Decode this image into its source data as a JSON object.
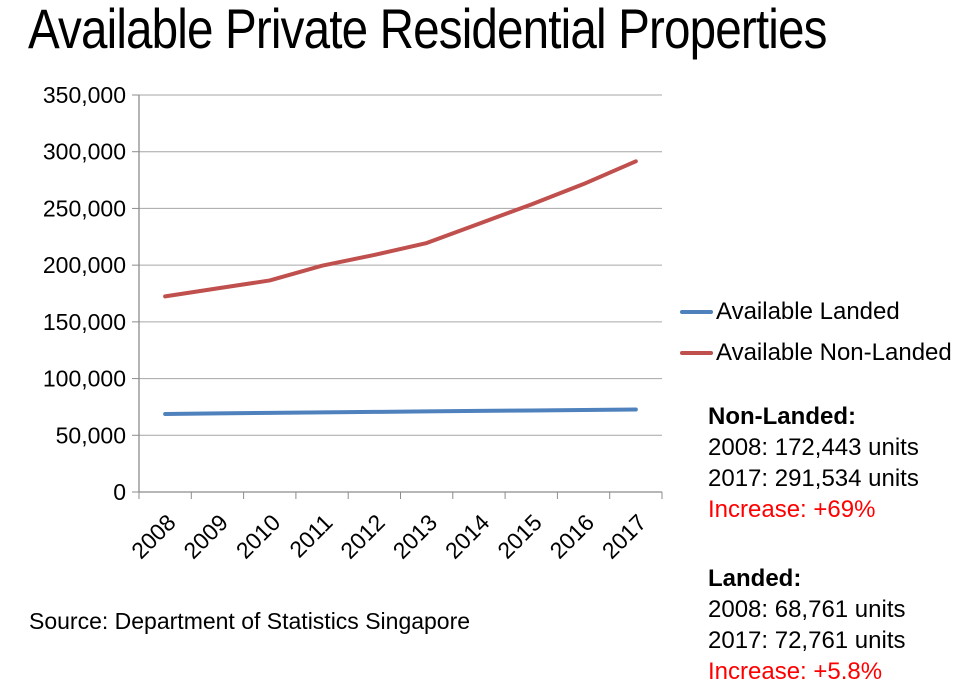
{
  "chart_data": {
    "type": "line",
    "title": "Available Private Residential Properties",
    "categories": [
      "2008",
      "2009",
      "2010",
      "2011",
      "2012",
      "2013",
      "2014",
      "2015",
      "2016",
      "2017"
    ],
    "series": [
      {
        "name": "Available Landed",
        "color": "#4F81BD",
        "values": [
          68761,
          69300,
          69800,
          70200,
          70600,
          71100,
          71500,
          71900,
          72300,
          72761
        ]
      },
      {
        "name": "Available Non-Landed",
        "color": "#C0504D",
        "values": [
          172443,
          179500,
          186500,
          199500,
          209000,
          219500,
          236500,
          253500,
          271500,
          291534
        ]
      }
    ],
    "xlabel": "",
    "ylabel": "",
    "ylim": [
      0,
      350000
    ],
    "ytick_step": 50000,
    "grid": true,
    "legend_position": "right"
  },
  "annotations": {
    "non_landed": {
      "heading": "Non-Landed:",
      "line_2008": "2008: 172,443 units",
      "line_2017": "2017: 291,534 units",
      "increase": "Increase: +69%"
    },
    "landed": {
      "heading": "Landed:",
      "line_2008": "2008: 68,761 units",
      "line_2017": "2017: 72,761 units",
      "increase": "Increase: +5.8%"
    }
  },
  "source": "Source: Department of Statistics Singapore",
  "colors": {
    "landed_series": "#4F81BD",
    "non_landed_series": "#C0504D",
    "increase_text": "#FF0000",
    "gridline": "#A6A6A6",
    "axis": "#8C8C8C",
    "text": "#000000"
  }
}
